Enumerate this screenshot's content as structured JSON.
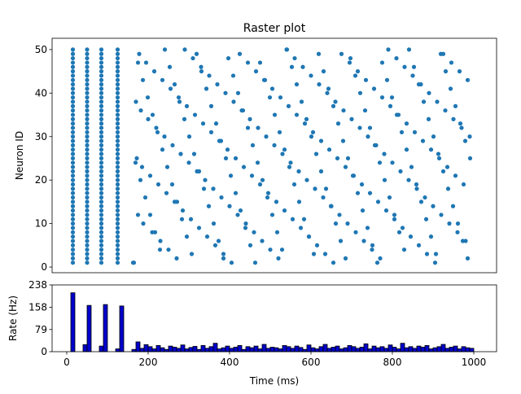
{
  "chart_data": [
    {
      "type": "scatter",
      "title": "Raster plot",
      "ylabel": "Neuron ID",
      "color": "#1f77b4",
      "xlim": [
        -36,
        1056
      ],
      "ylim": [
        -1.3,
        52.6
      ],
      "yticks": [
        0,
        10,
        20,
        30,
        40,
        50
      ],
      "x": [
        15,
        15,
        15,
        15,
        15,
        15,
        15,
        15,
        15,
        15,
        15,
        15,
        15,
        15,
        15,
        15,
        15,
        15,
        15,
        15,
        15,
        15,
        15,
        15,
        15,
        15,
        15,
        15,
        15,
        15,
        15,
        15,
        15,
        15,
        15,
        15,
        15,
        15,
        15,
        15,
        15,
        15,
        15,
        15,
        15,
        15,
        15,
        15,
        15,
        15,
        50,
        50,
        50,
        50,
        50,
        50,
        50,
        50,
        50,
        50,
        50,
        50,
        50,
        50,
        50,
        50,
        50,
        50,
        50,
        50,
        50,
        50,
        50,
        50,
        50,
        50,
        50,
        50,
        50,
        50,
        50,
        50,
        50,
        50,
        50,
        50,
        50,
        50,
        50,
        50,
        50,
        50,
        50,
        50,
        50,
        50,
        50,
        50,
        50,
        50,
        85,
        85,
        85,
        85,
        85,
        85,
        85,
        85,
        85,
        85,
        85,
        85,
        85,
        85,
        85,
        85,
        85,
        85,
        85,
        85,
        85,
        85,
        85,
        85,
        85,
        85,
        85,
        85,
        85,
        85,
        85,
        85,
        85,
        85,
        85,
        85,
        85,
        85,
        85,
        85,
        85,
        85,
        85,
        85,
        85,
        85,
        85,
        85,
        85,
        85,
        125,
        125,
        125,
        125,
        125,
        125,
        125,
        125,
        125,
        125,
        125,
        125,
        125,
        125,
        125,
        125,
        125,
        125,
        125,
        125,
        125,
        125,
        125,
        125,
        125,
        125,
        125,
        125,
        125,
        125,
        125,
        125,
        125,
        125,
        125,
        125,
        125,
        125,
        125,
        125,
        125,
        125,
        125,
        125,
        125,
        125,
        125,
        125,
        125,
        125,
        165,
        170,
        172,
        175,
        178,
        182,
        185,
        188,
        195,
        200,
        205,
        210,
        215,
        220,
        225,
        230,
        235,
        240,
        245,
        250,
        255,
        260,
        265,
        270,
        275,
        280,
        285,
        290,
        295,
        300,
        305,
        310,
        315,
        320,
        325,
        330,
        335,
        340,
        345,
        350,
        355,
        360,
        365,
        370,
        375,
        380,
        385,
        390,
        395,
        400,
        405,
        410,
        415,
        420,
        425,
        430,
        435,
        440,
        445,
        450,
        455,
        460,
        465,
        470,
        475,
        480,
        485,
        490,
        495,
        500,
        505,
        510,
        515,
        520,
        525,
        530,
        535,
        540,
        545,
        550,
        555,
        560,
        565,
        570,
        575,
        580,
        585,
        590,
        595,
        600,
        605,
        610,
        615,
        620,
        625,
        630,
        635,
        640,
        645,
        650,
        655,
        660,
        665,
        670,
        675,
        680,
        685,
        690,
        695,
        700,
        705,
        710,
        715,
        720,
        725,
        730,
        735,
        740,
        745,
        750,
        755,
        760,
        765,
        770,
        775,
        780,
        785,
        790,
        795,
        800,
        805,
        810,
        815,
        820,
        825,
        830,
        835,
        840,
        845,
        850,
        855,
        860,
        865,
        870,
        875,
        880,
        885,
        890,
        895,
        900,
        905,
        910,
        915,
        920,
        925,
        930,
        935,
        940,
        945,
        950,
        955,
        960,
        965,
        970,
        975,
        980,
        985,
        990,
        163,
        169,
        175,
        181,
        187,
        193,
        199,
        205,
        211,
        217,
        223,
        229,
        235,
        241,
        247,
        253,
        259,
        265,
        271,
        277,
        283,
        289,
        295,
        301,
        307,
        313,
        319,
        325,
        331,
        337,
        343,
        349,
        355,
        361,
        367,
        373,
        379,
        385,
        391,
        397,
        403,
        409,
        415,
        421,
        427,
        433,
        439,
        445,
        451,
        457,
        463,
        469,
        475,
        481,
        487,
        493,
        499,
        505,
        511,
        517,
        523,
        529,
        535,
        541,
        547,
        553,
        559,
        565,
        571,
        577,
        583,
        589,
        595,
        601,
        607,
        613,
        619,
        625,
        631,
        637,
        643,
        649,
        655,
        661,
        667,
        673,
        679,
        685,
        691,
        697,
        703,
        709,
        715,
        721,
        727,
        733,
        739,
        745,
        751,
        757,
        763,
        769,
        775,
        781,
        787,
        793,
        799,
        805,
        811,
        817,
        823,
        829,
        835,
        841,
        847,
        853,
        859,
        865,
        871,
        877,
        883,
        889,
        895,
        901,
        907,
        913,
        919,
        925,
        931,
        937,
        943,
        949,
        955,
        961,
        967,
        973,
        979,
        985,
        991
      ],
      "y": [
        1,
        2,
        3,
        4,
        5,
        6,
        7,
        8,
        9,
        10,
        11,
        12,
        13,
        14,
        15,
        16,
        17,
        18,
        19,
        20,
        21,
        22,
        23,
        24,
        25,
        26,
        27,
        28,
        29,
        30,
        31,
        32,
        33,
        34,
        35,
        36,
        37,
        38,
        39,
        40,
        41,
        42,
        43,
        44,
        45,
        46,
        47,
        48,
        49,
        50,
        1,
        2,
        3,
        4,
        5,
        6,
        7,
        8,
        9,
        10,
        11,
        12,
        13,
        14,
        15,
        16,
        17,
        18,
        19,
        20,
        21,
        22,
        23,
        24,
        25,
        26,
        27,
        28,
        29,
        30,
        31,
        32,
        33,
        34,
        35,
        36,
        37,
        38,
        39,
        40,
        41,
        42,
        43,
        44,
        45,
        46,
        47,
        48,
        49,
        50,
        1,
        2,
        3,
        4,
        5,
        6,
        7,
        8,
        9,
        10,
        11,
        12,
        13,
        14,
        15,
        16,
        17,
        18,
        19,
        20,
        21,
        22,
        23,
        24,
        25,
        26,
        27,
        28,
        29,
        30,
        31,
        32,
        33,
        34,
        35,
        36,
        37,
        38,
        39,
        40,
        41,
        42,
        43,
        44,
        45,
        46,
        47,
        48,
        49,
        50,
        1,
        2,
        3,
        4,
        5,
        6,
        7,
        8,
        9,
        10,
        11,
        12,
        13,
        14,
        15,
        16,
        17,
        18,
        19,
        20,
        21,
        22,
        23,
        24,
        25,
        26,
        27,
        28,
        29,
        30,
        31,
        32,
        33,
        34,
        35,
        36,
        37,
        38,
        39,
        40,
        41,
        42,
        43,
        44,
        45,
        46,
        47,
        48,
        49,
        50,
        1,
        38,
        25,
        12,
        49,
        36,
        23,
        10,
        47,
        34,
        21,
        8,
        45,
        32,
        19,
        6,
        43,
        30,
        17,
        4,
        41,
        28,
        15,
        2,
        39,
        26,
        13,
        50,
        37,
        24,
        11,
        48,
        35,
        22,
        9,
        46,
        33,
        20,
        7,
        44,
        31,
        18,
        5,
        42,
        29,
        16,
        3,
        40,
        27,
        14,
        1,
        38,
        25,
        12,
        49,
        36,
        23,
        10,
        47,
        34,
        21,
        8,
        45,
        32,
        19,
        6,
        43,
        30,
        17,
        4,
        41,
        28,
        15,
        2,
        39,
        26,
        13,
        50,
        37,
        24,
        11,
        48,
        35,
        22,
        9,
        46,
        33,
        20,
        7,
        44,
        31,
        18,
        5,
        42,
        29,
        16,
        3,
        40,
        27,
        14,
        1,
        38,
        25,
        12,
        49,
        36,
        23,
        10,
        47,
        34,
        21,
        8,
        45,
        32,
        19,
        6,
        43,
        30,
        17,
        4,
        41,
        28,
        15,
        2,
        39,
        26,
        13,
        50,
        37,
        24,
        11,
        48,
        35,
        22,
        9,
        46,
        33,
        20,
        7,
        44,
        31,
        18,
        5,
        42,
        29,
        16,
        3,
        40,
        27,
        14,
        1,
        38,
        25,
        12,
        49,
        36,
        23,
        10,
        47,
        34,
        21,
        8,
        45,
        32,
        19,
        6,
        43,
        30,
        1,
        24,
        47,
        20,
        43,
        16,
        39,
        12,
        35,
        8,
        31,
        4,
        27,
        50,
        23,
        46,
        19,
        42,
        15,
        38,
        11,
        34,
        7,
        30,
        3,
        26,
        49,
        22,
        45,
        18,
        41,
        14,
        37,
        10,
        33,
        6,
        29,
        2,
        25,
        48,
        21,
        44,
        17,
        40,
        13,
        36,
        9,
        32,
        5,
        28,
        1,
        24,
        47,
        20,
        43,
        16,
        39,
        12,
        35,
        8,
        31,
        4,
        27,
        50,
        23,
        46,
        19,
        42,
        15,
        38,
        11,
        34,
        7,
        30,
        3,
        26,
        49,
        22,
        45,
        18,
        41,
        14,
        37,
        10,
        33,
        6,
        29,
        2,
        25,
        48,
        21,
        44,
        17,
        40,
        13,
        36,
        9,
        32,
        5,
        28,
        1,
        24,
        47,
        20,
        43,
        16,
        39,
        12,
        35,
        8,
        31,
        4,
        27,
        50,
        23,
        46,
        19,
        42,
        15,
        38,
        11,
        34,
        7,
        30,
        3,
        26,
        49,
        22,
        45,
        18,
        41,
        14,
        37,
        10,
        33,
        6,
        29,
        2,
        25
      ]
    },
    {
      "type": "histogram",
      "xlabel": "Time (ms)",
      "ylabel": "Rate (Hz)",
      "color": "#0000cc",
      "edgecolor": "#000000",
      "xlim": [
        -36,
        1056
      ],
      "ylim": [
        0,
        238
      ],
      "xticks": [
        0,
        200,
        400,
        600,
        800,
        1000
      ],
      "yticks": [
        0,
        79,
        158,
        238
      ],
      "bins": [
        0,
        10,
        20,
        30,
        40,
        50,
        60,
        70,
        80,
        90,
        100,
        110,
        120,
        130,
        140,
        150,
        160,
        170,
        180,
        190,
        200,
        210,
        220,
        230,
        240,
        250,
        260,
        270,
        280,
        290,
        300,
        310,
        320,
        330,
        340,
        350,
        360,
        370,
        380,
        390,
        400,
        410,
        420,
        430,
        440,
        450,
        460,
        470,
        480,
        490,
        500,
        510,
        520,
        530,
        540,
        550,
        560,
        570,
        580,
        590,
        600,
        610,
        620,
        630,
        640,
        650,
        660,
        670,
        680,
        690,
        700,
        710,
        720,
        730,
        740,
        750,
        760,
        770,
        780,
        790,
        800,
        810,
        820,
        830,
        840,
        850,
        860,
        870,
        880,
        890,
        900,
        910,
        920,
        930,
        940,
        950,
        960,
        970,
        980,
        990,
        1000
      ],
      "values": [
        0,
        210,
        0,
        0,
        25,
        165,
        0,
        0,
        20,
        168,
        0,
        0,
        10,
        163,
        0,
        0,
        8,
        35,
        12,
        25,
        18,
        10,
        22,
        14,
        8,
        20,
        16,
        12,
        24,
        10,
        15,
        19,
        8,
        22,
        12,
        18,
        30,
        10,
        14,
        20,
        12,
        16,
        22,
        8,
        18,
        14,
        20,
        10,
        26,
        12,
        16,
        14,
        10,
        22,
        18,
        12,
        20,
        15,
        8,
        24,
        14,
        10,
        18,
        26,
        12,
        16,
        20,
        10,
        14,
        22,
        18,
        12,
        16,
        28,
        10,
        20,
        14,
        18,
        12,
        24,
        16,
        10,
        30,
        14,
        18,
        12,
        20,
        16,
        22,
        10,
        14,
        18,
        26,
        12,
        16,
        20,
        10,
        18,
        14,
        12
      ]
    }
  ]
}
